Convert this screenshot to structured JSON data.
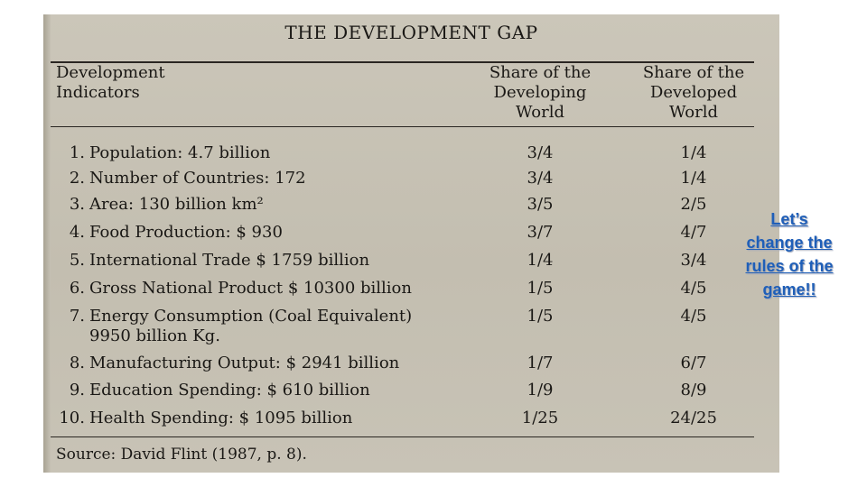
{
  "document": {
    "title": "THE DEVELOPMENT GAP",
    "headers": {
      "indicators": "Development\nIndicators",
      "developing": "Share of the\nDeveloping\nWorld",
      "developed": "Share of the\nDeveloped\nWorld"
    },
    "rows": [
      {
        "num": "1.",
        "indicator": "Population: 4.7 billion",
        "developing": "3/4",
        "developed": "1/4"
      },
      {
        "num": "2.",
        "indicator": "Number of Countries: 172",
        "developing": "3/4",
        "developed": "1/4"
      },
      {
        "num": "3.",
        "indicator": "Area: 130 billion km²",
        "developing": "3/5",
        "developed": "2/5"
      },
      {
        "num": "4.",
        "indicator": "Food Production: $ 930",
        "developing": "3/7",
        "developed": "4/7"
      },
      {
        "num": "5.",
        "indicator": "International Trade $ 1759 billion",
        "developing": "1/4",
        "developed": "3/4"
      },
      {
        "num": "6.",
        "indicator": "Gross National Product $ 10300 billion",
        "developing": "1/5",
        "developed": "4/5"
      },
      {
        "num": "7.",
        "indicator": "Energy Consumption (Coal Equivalent)\n9950 billion Kg.",
        "developing": "1/5",
        "developed": "4/5"
      },
      {
        "num": "8.",
        "indicator": "Manufacturing Output: $ 2941 billion",
        "developing": "1/7",
        "developed": "6/7"
      },
      {
        "num": "9.",
        "indicator": "Education Spending: $ 610 billion",
        "developing": "1/9",
        "developed": "8/9"
      },
      {
        "num": "10.",
        "indicator": "Health Spending: $ 1095 billion",
        "developing": "1/25",
        "developed": "24/25"
      }
    ],
    "source": "Source: David Flint (1987, p. 8)."
  },
  "callout": {
    "text": "Let’s\nchange the\nrules of the\ngame!!"
  },
  "colors": {
    "paper": "#c6c1b4",
    "ink": "#1a1815",
    "callout": "#1f5fb8"
  }
}
